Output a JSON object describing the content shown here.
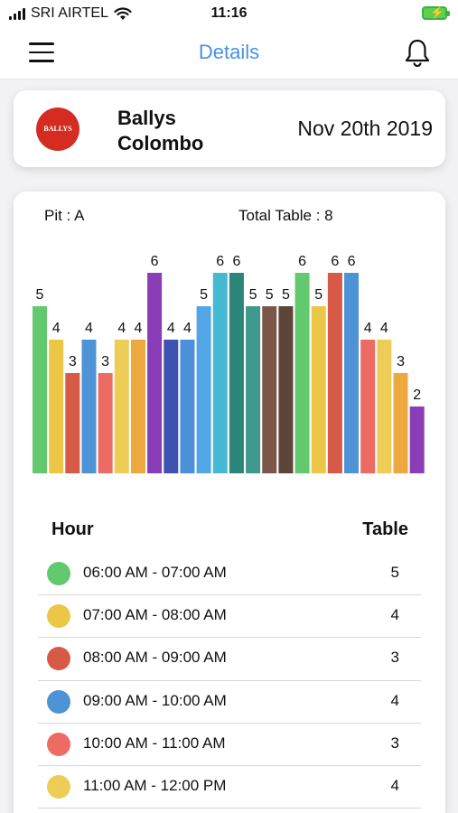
{
  "status_bar": {
    "carrier": "SRI AIRTEL",
    "time": "11:16"
  },
  "header": {
    "title": "Details"
  },
  "casino": {
    "logo_text": "BALLYS CASINO",
    "name": "Ballys Colombo",
    "date": "Nov 20th 2019",
    "logo_color": "#d52c22"
  },
  "summary": {
    "pit": "Pit : A",
    "total_tables": "Total Table : 8"
  },
  "chart_data": {
    "type": "bar",
    "values": [
      5,
      4,
      3,
      4,
      3,
      4,
      4,
      6,
      4,
      4,
      5,
      6,
      6,
      5,
      5,
      5,
      6,
      5,
      6,
      6,
      4,
      4,
      3,
      2
    ],
    "colors": [
      "#62c96f",
      "#ecc646",
      "#d65a45",
      "#4e93d6",
      "#ee6b63",
      "#edcd56",
      "#eea840",
      "#8b3cb7",
      "#3e53b1",
      "#4b90d9",
      "#53a6e6",
      "#45b8d2",
      "#2c8579",
      "#3f998c",
      "#7a5749",
      "#5e4539",
      "#62c96f",
      "#ecc646",
      "#d65a45",
      "#4e93d6",
      "#ee6b63",
      "#edcd56",
      "#eea840",
      "#8b3cb7"
    ],
    "ylim": [
      0,
      6
    ]
  },
  "table": {
    "hour_label": "Hour",
    "table_label": "Table",
    "rows": [
      {
        "hour": "06:00 AM - 07:00 AM",
        "count": "5",
        "color": "#62c96f"
      },
      {
        "hour": "07:00 AM - 08:00 AM",
        "count": "4",
        "color": "#ecc646"
      },
      {
        "hour": "08:00 AM - 09:00 AM",
        "count": "3",
        "color": "#d65a45"
      },
      {
        "hour": "09:00 AM - 10:00 AM",
        "count": "4",
        "color": "#4e93d6"
      },
      {
        "hour": "10:00 AM - 11:00 AM",
        "count": "3",
        "color": "#ee6b63"
      },
      {
        "hour": "11:00 AM - 12:00 PM",
        "count": "4",
        "color": "#edcd56"
      }
    ]
  }
}
